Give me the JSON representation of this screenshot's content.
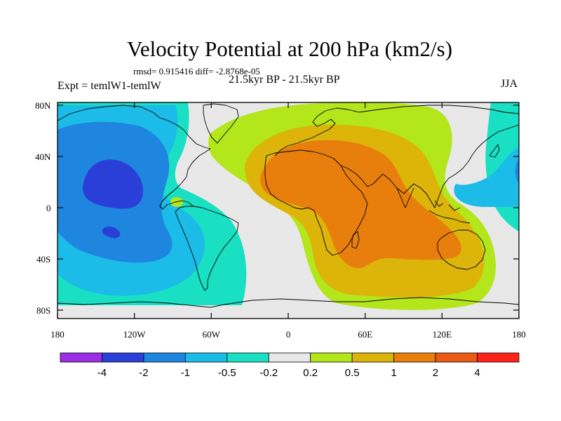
{
  "title": "Velocity Potential at 200 hPa (km2/s)",
  "stats": "rmsd= 0.915416 diff= -2.8768e-05",
  "subtitle": "21.5kyr BP - 21.5kyr BP",
  "experiment": "Expt = temlW1-temlW",
  "season": "JJA",
  "axes": {
    "lat_ticks": [
      "80N",
      "40N",
      "0",
      "40S",
      "80S"
    ],
    "lon_ticks": [
      "180",
      "120W",
      "60W",
      "0",
      "60E",
      "120E",
      "180"
    ]
  },
  "colorbar": {
    "colors": [
      "#9b2ee6",
      "#2a3fd8",
      "#1f86e0",
      "#1cbce8",
      "#19e0c3",
      "#e8e8e8",
      "#b4e61c",
      "#dcb40a",
      "#e87f0c",
      "#eb5a14",
      "#ff2216"
    ],
    "labels": [
      "-4",
      "-2",
      "-1",
      "-0.5",
      "-0.2",
      "0.2",
      "0.5",
      "1",
      "2",
      "4"
    ]
  }
}
